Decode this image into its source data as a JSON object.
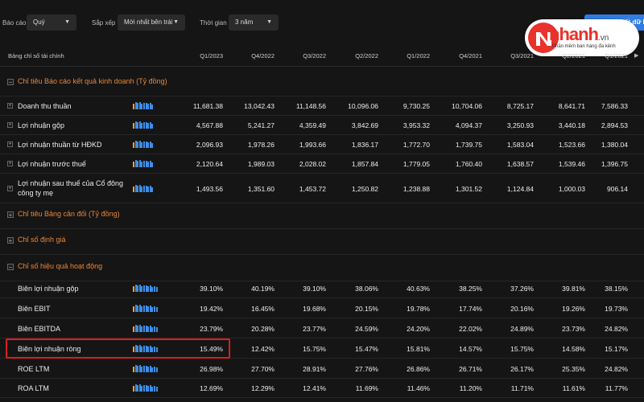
{
  "filters": {
    "report": {
      "label": "Báo cáo",
      "value": "Quý"
    },
    "sort": {
      "label": "Sắp xếp",
      "value": "Mới nhất bên trái"
    },
    "time": {
      "label": "Thời gian",
      "value": "3 năm"
    },
    "export_label": "Xuất dữ liệu"
  },
  "logo": {
    "brand": "nhanh",
    "domain": ".vn",
    "tagline": "Phần mềm bán hàng đa kênh"
  },
  "table": {
    "first_column_header": "Bảng chỉ số tài chính",
    "periods": [
      "Q1/2023",
      "Q4/2022",
      "Q3/2022",
      "Q2/2022",
      "Q1/2022",
      "Q4/2021",
      "Q3/2021",
      "Q2/2021",
      "Q1/2021"
    ],
    "sections": [
      {
        "title": "Chỉ tiêu Báo cáo kết quả kinh doanh (Tỷ đồng)",
        "rows": [
          {
            "label": "Doanh thu thuần",
            "values": [
              "11,681.38",
              "13,042.43",
              "11,148.56",
              "10,096.06",
              "9,730.25",
              "10,704.06",
              "8,725.17",
              "8,641.71",
              "7,586.33"
            ]
          },
          {
            "label": "Lợi nhuận gộp",
            "values": [
              "4,567.88",
              "5,241.27",
              "4,359.49",
              "3,842.69",
              "3,953.32",
              "4,094.37",
              "3,250.93",
              "3,440.18",
              "2,894.53"
            ]
          },
          {
            "label": "Lợi nhuận thuần từ HĐKD",
            "values": [
              "2,096.93",
              "1,978.26",
              "1,993.66",
              "1,836.17",
              "1,772.70",
              "1,739.75",
              "1,583.04",
              "1,523.66",
              "1,380.04"
            ]
          },
          {
            "label": "Lợi nhuận trước thuế",
            "values": [
              "2,120.64",
              "1,989.03",
              "2,028.02",
              "1,857.84",
              "1,779.05",
              "1,760.40",
              "1,638.57",
              "1,539.46",
              "1,396.75"
            ]
          },
          {
            "label_line1": "Lợi nhuận sau thuế của Cổ đông",
            "label_line2": "công ty mẹ",
            "values": [
              "1,493.56",
              "1,351.60",
              "1,453.72",
              "1,250.82",
              "1,238.88",
              "1,301.52",
              "1,124.84",
              "1,000.03",
              "906.14"
            ]
          }
        ]
      },
      {
        "title": "Chỉ tiêu Bảng cân đối (Tỷ đồng)"
      },
      {
        "title": "Chỉ số định giá"
      },
      {
        "title": "Chỉ số hiệu quả hoạt động",
        "rows": [
          {
            "label": "Biên lợi nhuận gộp",
            "values": [
              "39.10%",
              "40.19%",
              "39.10%",
              "38.06%",
              "40.63%",
              "38.25%",
              "37.26%",
              "39.81%",
              "38.15%"
            ]
          },
          {
            "label": "Biên EBIT",
            "values": [
              "19.42%",
              "16.45%",
              "19.68%",
              "20.15%",
              "19.78%",
              "17.74%",
              "20.16%",
              "19.26%",
              "19.73%"
            ]
          },
          {
            "label": "Biên EBITDA",
            "values": [
              "23.79%",
              "20.28%",
              "23.77%",
              "24.59%",
              "24.20%",
              "22.02%",
              "24.89%",
              "23.73%",
              "24.82%"
            ]
          },
          {
            "label": "Biên lợi nhuận ròng",
            "values": [
              "15.49%",
              "12.42%",
              "15.75%",
              "15.47%",
              "15.81%",
              "14.57%",
              "15.75%",
              "14.58%",
              "15.17%"
            ]
          },
          {
            "label": "ROE LTM",
            "values": [
              "26.98%",
              "27.70%",
              "28.91%",
              "27.76%",
              "26.86%",
              "26.71%",
              "26.17%",
              "25.35%",
              "24.82%"
            ]
          },
          {
            "label": "ROA LTM",
            "values": [
              "12.69%",
              "12.29%",
              "12.41%",
              "11.69%",
              "11.46%",
              "11.20%",
              "11.71%",
              "11.61%",
              "11.77%"
            ]
          }
        ]
      }
    ]
  }
}
